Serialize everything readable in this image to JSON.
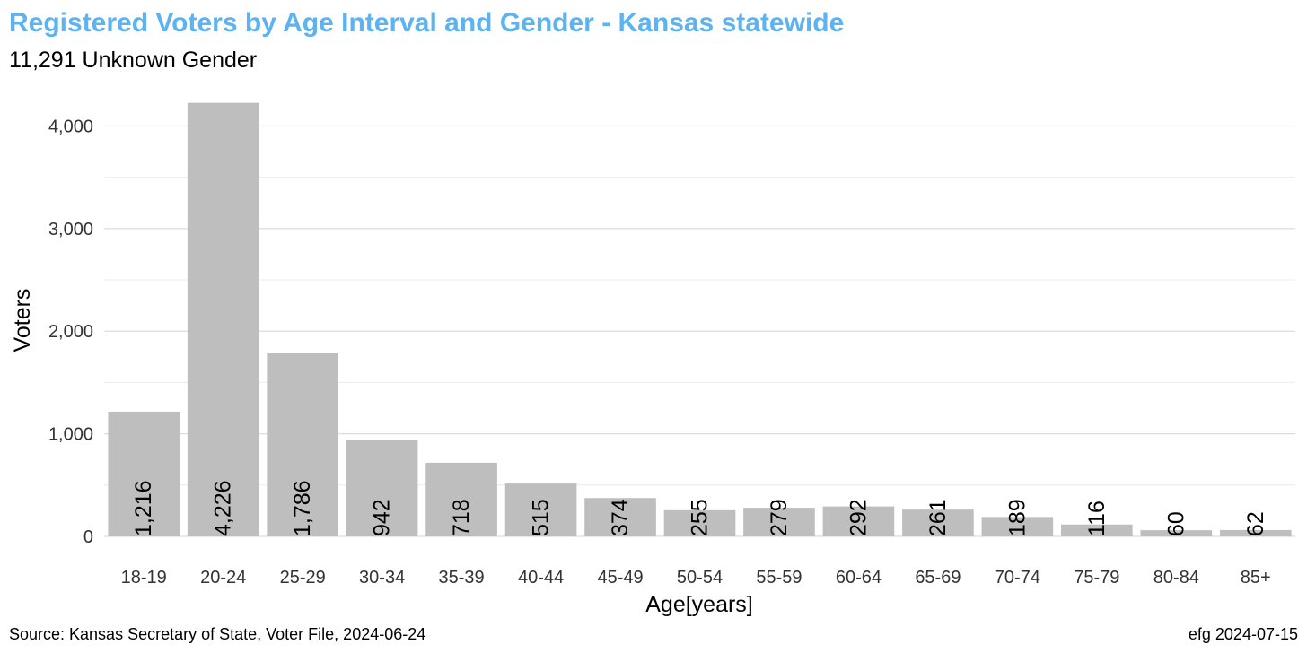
{
  "chart_data": {
    "type": "bar",
    "title": "Registered Voters by Age Interval and Gender - Kansas statewide",
    "subtitle": "11,291 Unknown Gender",
    "xlabel": "Age[years]",
    "ylabel": "Voters",
    "categories": [
      "18-19",
      "20-24",
      "25-29",
      "30-34",
      "35-39",
      "40-44",
      "45-49",
      "50-54",
      "55-59",
      "60-64",
      "65-69",
      "70-74",
      "75-79",
      "80-84",
      "85+"
    ],
    "values": [
      1216,
      4226,
      1786,
      942,
      718,
      515,
      374,
      255,
      279,
      292,
      261,
      189,
      116,
      60,
      62
    ],
    "value_labels": [
      "1,216",
      "4,226",
      "1,786",
      "942",
      "718",
      "515",
      "374",
      "255",
      "279",
      "292",
      "261",
      "189",
      "116",
      "60",
      "62"
    ],
    "ylim": [
      0,
      4400
    ],
    "yticks": [
      0,
      1000,
      2000,
      3000,
      4000
    ],
    "ytick_labels": [
      "0",
      "1,000",
      "2,000",
      "3,000",
      "4,000"
    ],
    "grid": true,
    "bar_color": "#bebebe",
    "title_color": "#5db2f0",
    "grid_color": "#ebebeb"
  },
  "caption": {
    "left": "Source:  Kansas Secretary of State, Voter File, 2024-06-24",
    "right": "efg 2024-07-15"
  }
}
